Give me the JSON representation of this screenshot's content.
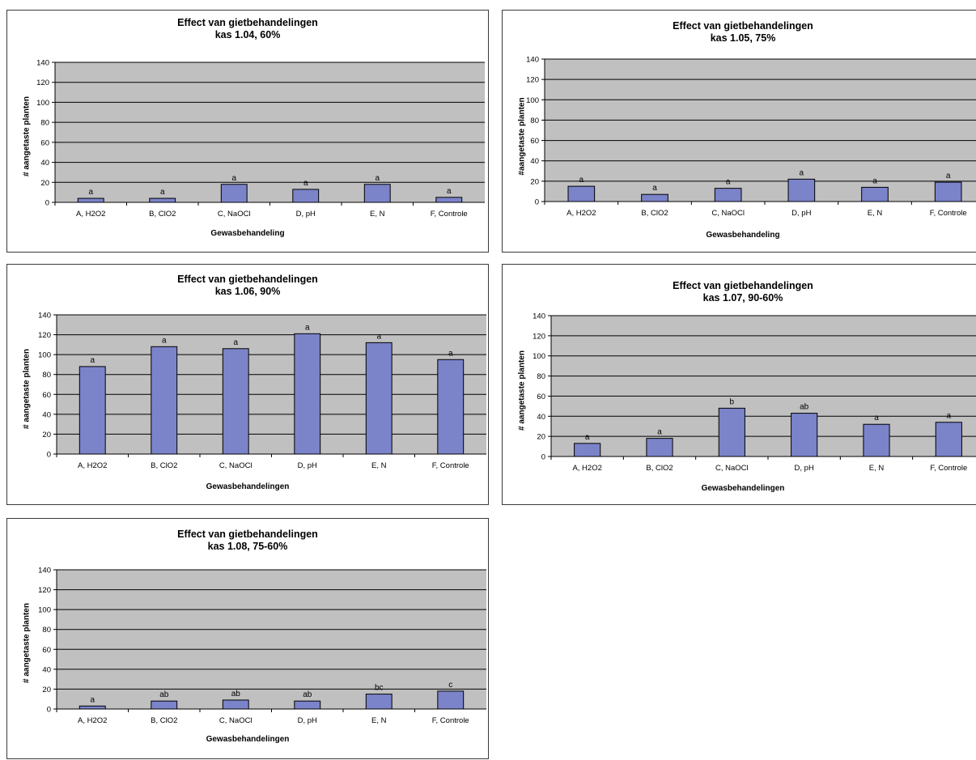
{
  "colors": {
    "plot_bg": "#c0c0c0",
    "bar_fill": "#7b83c9",
    "bar_stroke": "#000000",
    "grid": "#000000"
  },
  "chart_data": [
    {
      "type": "bar",
      "title": "Effect van gietbehandelingen",
      "subtitle": "kas 1.04, 60%",
      "xlabel": "Gewasbehandeling",
      "ylabel": "# aangetaste planten",
      "ylim": [
        0,
        140
      ],
      "yticks": [
        0,
        20,
        40,
        60,
        80,
        100,
        120,
        140
      ],
      "grid": true,
      "categories": [
        "A, H2O2",
        "B, ClO2",
        "C, NaOCl",
        "D, pH",
        "E, N",
        "F, Controle"
      ],
      "values": [
        4,
        4,
        18,
        13,
        18,
        5
      ],
      "annotations": [
        "a",
        "a",
        "a",
        "a",
        "a",
        "a"
      ]
    },
    {
      "type": "bar",
      "title": "Effect van gietbehandelingen",
      "subtitle": "kas 1.05, 75%",
      "xlabel": "Gewasbehandeling",
      "ylabel": "#aangetaste planten",
      "ylim": [
        0,
        140
      ],
      "yticks": [
        0,
        20,
        40,
        60,
        80,
        100,
        120,
        140
      ],
      "grid": true,
      "categories": [
        "A, H2O2",
        "B, ClO2",
        "C, NaOCl",
        "D, pH",
        "E, N",
        "F, Controle"
      ],
      "values": [
        15,
        7,
        13,
        22,
        14,
        19
      ],
      "annotations": [
        "a",
        "a",
        "a",
        "a",
        "a",
        "a"
      ]
    },
    {
      "type": "bar",
      "title": "Effect van gietbehandelingen",
      "subtitle": "kas 1.06, 90%",
      "xlabel": "Gewasbehandelingen",
      "ylabel": "# aangetaste planten",
      "ylim": [
        0,
        140
      ],
      "yticks": [
        0,
        20,
        40,
        60,
        80,
        100,
        120,
        140
      ],
      "grid": true,
      "categories": [
        "A, H2O2",
        "B, ClO2",
        "C, NaOCl",
        "D, pH",
        "E, N",
        "F, Controle"
      ],
      "values": [
        88,
        108,
        106,
        121,
        112,
        95
      ],
      "annotations": [
        "a",
        "a",
        "a",
        "a",
        "a",
        "a"
      ]
    },
    {
      "type": "bar",
      "title": "Effect van gietbehandelingen",
      "subtitle": "kas 1.07, 90-60%",
      "xlabel": "Gewasbehandelingen",
      "ylabel": "# aangetaste planten",
      "ylim": [
        0,
        140
      ],
      "yticks": [
        0,
        20,
        40,
        60,
        80,
        100,
        120,
        140
      ],
      "grid": true,
      "categories": [
        "A, H2O2",
        "B, ClO2",
        "C, NaOCl",
        "D, pH",
        "E, N",
        "F, Controle"
      ],
      "values": [
        13,
        18,
        48,
        43,
        32,
        34
      ],
      "annotations": [
        "a",
        "a",
        "b",
        "ab",
        "a",
        "a"
      ]
    },
    {
      "type": "bar",
      "title": "Effect van gietbehandelingen",
      "subtitle": "kas  1.08, 75-60%",
      "xlabel": "Gewasbehandelingen",
      "ylabel": "# aangetaste planten",
      "ylim": [
        0,
        140
      ],
      "yticks": [
        0,
        20,
        40,
        60,
        80,
        100,
        120,
        140
      ],
      "grid": true,
      "categories": [
        "A, H2O2",
        "B, ClO2",
        "C, NaOCl",
        "D, pH",
        "E, N",
        "F, Controle"
      ],
      "values": [
        3,
        8,
        9,
        8,
        15,
        18
      ],
      "annotations": [
        "a",
        "ab",
        "ab",
        "ab",
        "bc",
        "c"
      ]
    }
  ]
}
